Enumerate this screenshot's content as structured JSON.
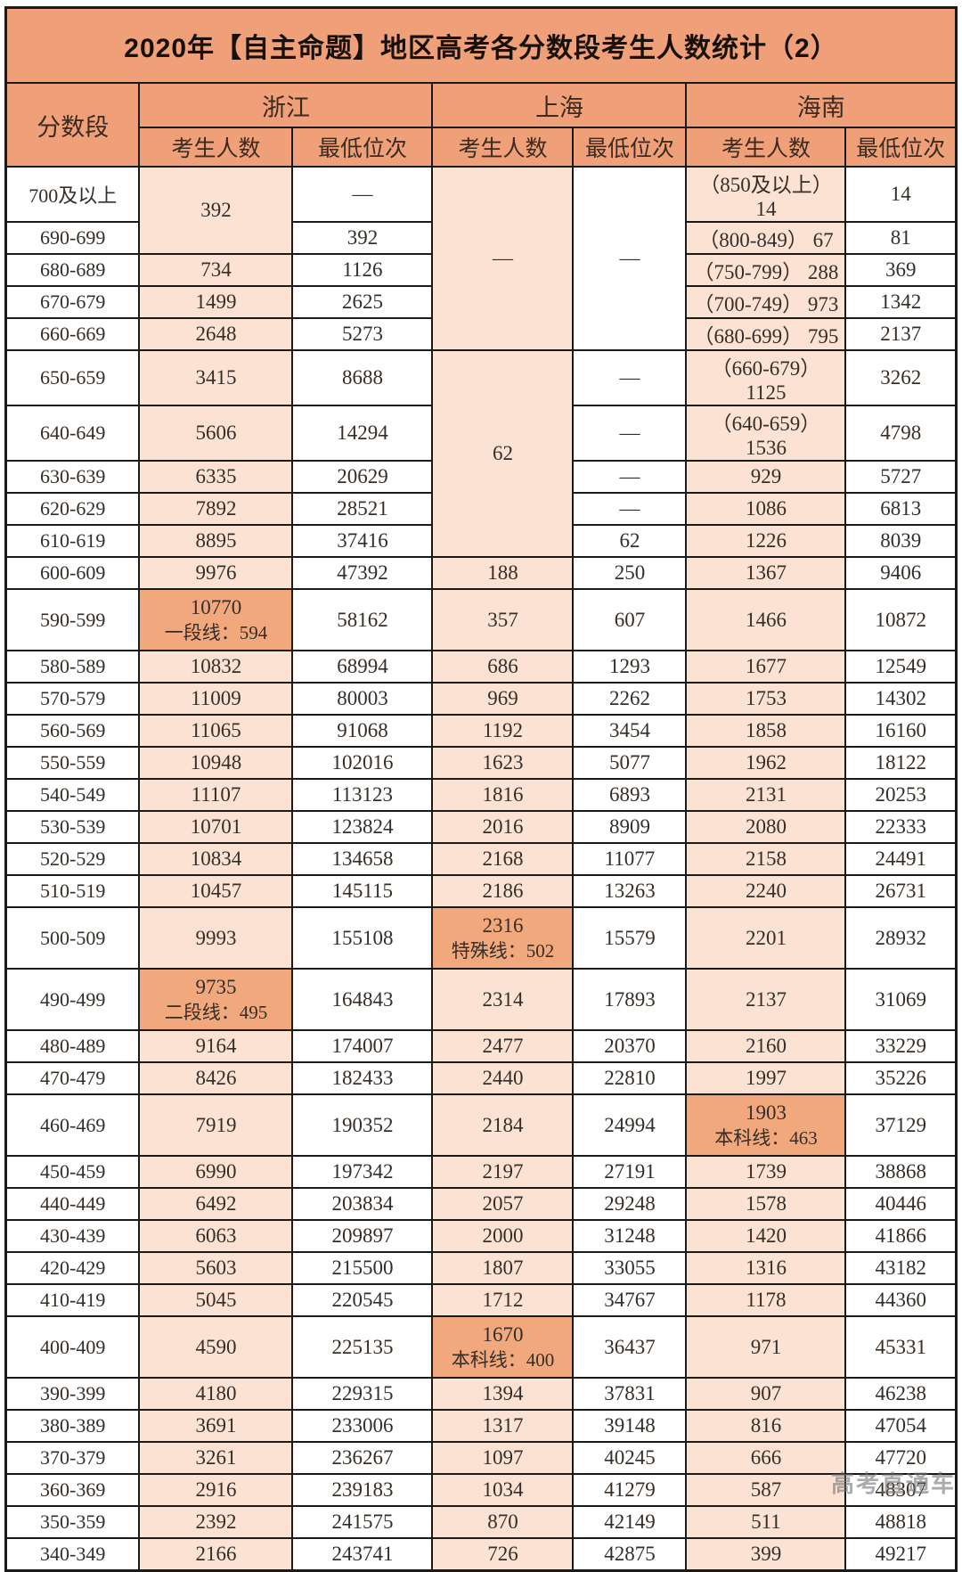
{
  "watermark": "高考直通车",
  "colors": {
    "header_bg": "#f0a078",
    "cell_peach": "#fbe2d3",
    "highlight_orange": "#f2a87d",
    "border": "#1a1a1a"
  },
  "chart_data": {
    "type": "table",
    "title": "2020年【自主命题】地区高考各分数段考生人数统计（2）",
    "header": {
      "score_column": "分数段",
      "regions": [
        "浙江",
        "上海",
        "海南"
      ],
      "count_label": "考生人数",
      "rank_label": "最低位次"
    },
    "rows": [
      {
        "range": "700及以上",
        "cells": [
          {
            "k": "zjc",
            "v": "392",
            "rs": 2
          },
          {
            "k": "zjr",
            "v": "—"
          },
          {
            "k": "shc",
            "v": "—",
            "rs": 5
          },
          {
            "k": "shr",
            "v": "—",
            "rs": 5
          },
          {
            "k": "hnc",
            "v": "（850及以上） 14"
          },
          {
            "k": "hnr",
            "v": "14"
          }
        ]
      },
      {
        "range": "690-699",
        "cells": [
          {
            "k": "zjr",
            "v": "392"
          },
          {
            "k": "hnc",
            "v": "（800-849） 67"
          },
          {
            "k": "hnr",
            "v": "81"
          }
        ]
      },
      {
        "range": "680-689",
        "cells": [
          {
            "k": "zjc",
            "v": "734"
          },
          {
            "k": "zjr",
            "v": "1126"
          },
          {
            "k": "hnc",
            "v": "（750-799） 288"
          },
          {
            "k": "hnr",
            "v": "369"
          }
        ]
      },
      {
        "range": "670-679",
        "cells": [
          {
            "k": "zjc",
            "v": "1499"
          },
          {
            "k": "zjr",
            "v": "2625"
          },
          {
            "k": "hnc",
            "v": "（700-749） 973"
          },
          {
            "k": "hnr",
            "v": "1342"
          }
        ]
      },
      {
        "range": "660-669",
        "cells": [
          {
            "k": "zjc",
            "v": "2648"
          },
          {
            "k": "zjr",
            "v": "5273"
          },
          {
            "k": "hnc",
            "v": "（680-699） 795"
          },
          {
            "k": "hnr",
            "v": "2137"
          }
        ]
      },
      {
        "range": "650-659",
        "cells": [
          {
            "k": "zjc",
            "v": "3415"
          },
          {
            "k": "zjr",
            "v": "8688"
          },
          {
            "k": "shc",
            "v": "62",
            "rs": 5
          },
          {
            "k": "shr",
            "v": "—"
          },
          {
            "k": "hnc",
            "v": "（660-679） 1125"
          },
          {
            "k": "hnr",
            "v": "3262"
          }
        ]
      },
      {
        "range": "640-649",
        "cells": [
          {
            "k": "zjc",
            "v": "5606"
          },
          {
            "k": "zjr",
            "v": "14294"
          },
          {
            "k": "shr",
            "v": "—"
          },
          {
            "k": "hnc",
            "v": "（640-659） 1536"
          },
          {
            "k": "hnr",
            "v": "4798"
          }
        ]
      },
      {
        "range": "630-639",
        "cells": [
          {
            "k": "zjc",
            "v": "6335"
          },
          {
            "k": "zjr",
            "v": "20629"
          },
          {
            "k": "shr",
            "v": "—"
          },
          {
            "k": "hnc",
            "v": "929"
          },
          {
            "k": "hnr",
            "v": "5727"
          }
        ]
      },
      {
        "range": "620-629",
        "cells": [
          {
            "k": "zjc",
            "v": "7892"
          },
          {
            "k": "zjr",
            "v": "28521"
          },
          {
            "k": "shr",
            "v": "—"
          },
          {
            "k": "hnc",
            "v": "1086"
          },
          {
            "k": "hnr",
            "v": "6813"
          }
        ]
      },
      {
        "range": "610-619",
        "cells": [
          {
            "k": "zjc",
            "v": "8895"
          },
          {
            "k": "zjr",
            "v": "37416"
          },
          {
            "k": "shr",
            "v": "62"
          },
          {
            "k": "hnc",
            "v": "1226"
          },
          {
            "k": "hnr",
            "v": "8039"
          }
        ]
      },
      {
        "range": "600-609",
        "cells": [
          {
            "k": "zjc",
            "v": "9976"
          },
          {
            "k": "zjr",
            "v": "47392"
          },
          {
            "k": "shc",
            "v": "188"
          },
          {
            "k": "shr",
            "v": "250"
          },
          {
            "k": "hnc",
            "v": "1367"
          },
          {
            "k": "hnr",
            "v": "9406"
          }
        ]
      },
      {
        "range": "590-599",
        "tall": true,
        "cells": [
          {
            "k": "zjc",
            "v": "10770",
            "l2": "一段线：594",
            "hl": true
          },
          {
            "k": "zjr",
            "v": "58162"
          },
          {
            "k": "shc",
            "v": "357"
          },
          {
            "k": "shr",
            "v": "607"
          },
          {
            "k": "hnc",
            "v": "1466"
          },
          {
            "k": "hnr",
            "v": "10872"
          }
        ]
      },
      {
        "range": "580-589",
        "cells": [
          {
            "k": "zjc",
            "v": "10832"
          },
          {
            "k": "zjr",
            "v": "68994"
          },
          {
            "k": "shc",
            "v": "686"
          },
          {
            "k": "shr",
            "v": "1293"
          },
          {
            "k": "hnc",
            "v": "1677"
          },
          {
            "k": "hnr",
            "v": "12549"
          }
        ]
      },
      {
        "range": "570-579",
        "cells": [
          {
            "k": "zjc",
            "v": "11009"
          },
          {
            "k": "zjr",
            "v": "80003"
          },
          {
            "k": "shc",
            "v": "969"
          },
          {
            "k": "shr",
            "v": "2262"
          },
          {
            "k": "hnc",
            "v": "1753"
          },
          {
            "k": "hnr",
            "v": "14302"
          }
        ]
      },
      {
        "range": "560-569",
        "cells": [
          {
            "k": "zjc",
            "v": "11065"
          },
          {
            "k": "zjr",
            "v": "91068"
          },
          {
            "k": "shc",
            "v": "1192"
          },
          {
            "k": "shr",
            "v": "3454"
          },
          {
            "k": "hnc",
            "v": "1858"
          },
          {
            "k": "hnr",
            "v": "16160"
          }
        ]
      },
      {
        "range": "550-559",
        "cells": [
          {
            "k": "zjc",
            "v": "10948"
          },
          {
            "k": "zjr",
            "v": "102016"
          },
          {
            "k": "shc",
            "v": "1623"
          },
          {
            "k": "shr",
            "v": "5077"
          },
          {
            "k": "hnc",
            "v": "1962"
          },
          {
            "k": "hnr",
            "v": "18122"
          }
        ]
      },
      {
        "range": "540-549",
        "cells": [
          {
            "k": "zjc",
            "v": "11107"
          },
          {
            "k": "zjr",
            "v": "113123"
          },
          {
            "k": "shc",
            "v": "1816"
          },
          {
            "k": "shr",
            "v": "6893"
          },
          {
            "k": "hnc",
            "v": "2131"
          },
          {
            "k": "hnr",
            "v": "20253"
          }
        ]
      },
      {
        "range": "530-539",
        "cells": [
          {
            "k": "zjc",
            "v": "10701"
          },
          {
            "k": "zjr",
            "v": "123824"
          },
          {
            "k": "shc",
            "v": "2016"
          },
          {
            "k": "shr",
            "v": "8909"
          },
          {
            "k": "hnc",
            "v": "2080"
          },
          {
            "k": "hnr",
            "v": "22333"
          }
        ]
      },
      {
        "range": "520-529",
        "cells": [
          {
            "k": "zjc",
            "v": "10834"
          },
          {
            "k": "zjr",
            "v": "134658"
          },
          {
            "k": "shc",
            "v": "2168"
          },
          {
            "k": "shr",
            "v": "11077"
          },
          {
            "k": "hnc",
            "v": "2158"
          },
          {
            "k": "hnr",
            "v": "24491"
          }
        ]
      },
      {
        "range": "510-519",
        "cells": [
          {
            "k": "zjc",
            "v": "10457"
          },
          {
            "k": "zjr",
            "v": "145115"
          },
          {
            "k": "shc",
            "v": "2186"
          },
          {
            "k": "shr",
            "v": "13263"
          },
          {
            "k": "hnc",
            "v": "2240"
          },
          {
            "k": "hnr",
            "v": "26731"
          }
        ]
      },
      {
        "range": "500-509",
        "tall": true,
        "cells": [
          {
            "k": "zjc",
            "v": "9993"
          },
          {
            "k": "zjr",
            "v": "155108"
          },
          {
            "k": "shc",
            "v": "2316",
            "l2": "特殊线：502",
            "hl": true
          },
          {
            "k": "shr",
            "v": "15579"
          },
          {
            "k": "hnc",
            "v": "2201"
          },
          {
            "k": "hnr",
            "v": "28932"
          }
        ]
      },
      {
        "range": "490-499",
        "tall": true,
        "cells": [
          {
            "k": "zjc",
            "v": "9735",
            "l2": "二段线：495",
            "hl": true
          },
          {
            "k": "zjr",
            "v": "164843"
          },
          {
            "k": "shc",
            "v": "2314"
          },
          {
            "k": "shr",
            "v": "17893"
          },
          {
            "k": "hnc",
            "v": "2137"
          },
          {
            "k": "hnr",
            "v": "31069"
          }
        ]
      },
      {
        "range": "480-489",
        "cells": [
          {
            "k": "zjc",
            "v": "9164"
          },
          {
            "k": "zjr",
            "v": "174007"
          },
          {
            "k": "shc",
            "v": "2477"
          },
          {
            "k": "shr",
            "v": "20370"
          },
          {
            "k": "hnc",
            "v": "2160"
          },
          {
            "k": "hnr",
            "v": "33229"
          }
        ]
      },
      {
        "range": "470-479",
        "cells": [
          {
            "k": "zjc",
            "v": "8426"
          },
          {
            "k": "zjr",
            "v": "182433"
          },
          {
            "k": "shc",
            "v": "2440"
          },
          {
            "k": "shr",
            "v": "22810"
          },
          {
            "k": "hnc",
            "v": "1997"
          },
          {
            "k": "hnr",
            "v": "35226"
          }
        ]
      },
      {
        "range": "460-469",
        "tall": true,
        "cells": [
          {
            "k": "zjc",
            "v": "7919"
          },
          {
            "k": "zjr",
            "v": "190352"
          },
          {
            "k": "shc",
            "v": "2184"
          },
          {
            "k": "shr",
            "v": "24994"
          },
          {
            "k": "hnc",
            "v": "1903",
            "l2": "本科线：463",
            "hl": true
          },
          {
            "k": "hnr",
            "v": "37129"
          }
        ]
      },
      {
        "range": "450-459",
        "cells": [
          {
            "k": "zjc",
            "v": "6990"
          },
          {
            "k": "zjr",
            "v": "197342"
          },
          {
            "k": "shc",
            "v": "2197"
          },
          {
            "k": "shr",
            "v": "27191"
          },
          {
            "k": "hnc",
            "v": "1739"
          },
          {
            "k": "hnr",
            "v": "38868"
          }
        ]
      },
      {
        "range": "440-449",
        "cells": [
          {
            "k": "zjc",
            "v": "6492"
          },
          {
            "k": "zjr",
            "v": "203834"
          },
          {
            "k": "shc",
            "v": "2057"
          },
          {
            "k": "shr",
            "v": "29248"
          },
          {
            "k": "hnc",
            "v": "1578"
          },
          {
            "k": "hnr",
            "v": "40446"
          }
        ]
      },
      {
        "range": "430-439",
        "cells": [
          {
            "k": "zjc",
            "v": "6063"
          },
          {
            "k": "zjr",
            "v": "209897"
          },
          {
            "k": "shc",
            "v": "2000"
          },
          {
            "k": "shr",
            "v": "31248"
          },
          {
            "k": "hnc",
            "v": "1420"
          },
          {
            "k": "hnr",
            "v": "41866"
          }
        ]
      },
      {
        "range": "420-429",
        "cells": [
          {
            "k": "zjc",
            "v": "5603"
          },
          {
            "k": "zjr",
            "v": "215500"
          },
          {
            "k": "shc",
            "v": "1807"
          },
          {
            "k": "shr",
            "v": "33055"
          },
          {
            "k": "hnc",
            "v": "1316"
          },
          {
            "k": "hnr",
            "v": "43182"
          }
        ]
      },
      {
        "range": "410-419",
        "cells": [
          {
            "k": "zjc",
            "v": "5045"
          },
          {
            "k": "zjr",
            "v": "220545"
          },
          {
            "k": "shc",
            "v": "1712"
          },
          {
            "k": "shr",
            "v": "34767"
          },
          {
            "k": "hnc",
            "v": "1178"
          },
          {
            "k": "hnr",
            "v": "44360"
          }
        ]
      },
      {
        "range": "400-409",
        "tall": true,
        "cells": [
          {
            "k": "zjc",
            "v": "4590"
          },
          {
            "k": "zjr",
            "v": "225135"
          },
          {
            "k": "shc",
            "v": "1670",
            "l2": "本科线：400",
            "hl": true
          },
          {
            "k": "shr",
            "v": "36437"
          },
          {
            "k": "hnc",
            "v": "971"
          },
          {
            "k": "hnr",
            "v": "45331"
          }
        ]
      },
      {
        "range": "390-399",
        "cells": [
          {
            "k": "zjc",
            "v": "4180"
          },
          {
            "k": "zjr",
            "v": "229315"
          },
          {
            "k": "shc",
            "v": "1394"
          },
          {
            "k": "shr",
            "v": "37831"
          },
          {
            "k": "hnc",
            "v": "907"
          },
          {
            "k": "hnr",
            "v": "46238"
          }
        ]
      },
      {
        "range": "380-389",
        "cells": [
          {
            "k": "zjc",
            "v": "3691"
          },
          {
            "k": "zjr",
            "v": "233006"
          },
          {
            "k": "shc",
            "v": "1317"
          },
          {
            "k": "shr",
            "v": "39148"
          },
          {
            "k": "hnc",
            "v": "816"
          },
          {
            "k": "hnr",
            "v": "47054"
          }
        ]
      },
      {
        "range": "370-379",
        "cells": [
          {
            "k": "zjc",
            "v": "3261"
          },
          {
            "k": "zjr",
            "v": "236267"
          },
          {
            "k": "shc",
            "v": "1097"
          },
          {
            "k": "shr",
            "v": "40245"
          },
          {
            "k": "hnc",
            "v": "666"
          },
          {
            "k": "hnr",
            "v": "47720"
          }
        ]
      },
      {
        "range": "360-369",
        "cells": [
          {
            "k": "zjc",
            "v": "2916"
          },
          {
            "k": "zjr",
            "v": "239183"
          },
          {
            "k": "shc",
            "v": "1034"
          },
          {
            "k": "shr",
            "v": "41279"
          },
          {
            "k": "hnc",
            "v": "587"
          },
          {
            "k": "hnr",
            "v": "48307"
          }
        ]
      },
      {
        "range": "350-359",
        "cells": [
          {
            "k": "zjc",
            "v": "2392"
          },
          {
            "k": "zjr",
            "v": "241575"
          },
          {
            "k": "shc",
            "v": "870"
          },
          {
            "k": "shr",
            "v": "42149"
          },
          {
            "k": "hnc",
            "v": "511"
          },
          {
            "k": "hnr",
            "v": "48818"
          }
        ]
      },
      {
        "range": "340-349",
        "cells": [
          {
            "k": "zjc",
            "v": "2166"
          },
          {
            "k": "zjr",
            "v": "243741"
          },
          {
            "k": "shc",
            "v": "726"
          },
          {
            "k": "shr",
            "v": "42875"
          },
          {
            "k": "hnc",
            "v": "399"
          },
          {
            "k": "hnr",
            "v": "49217"
          }
        ]
      }
    ]
  }
}
